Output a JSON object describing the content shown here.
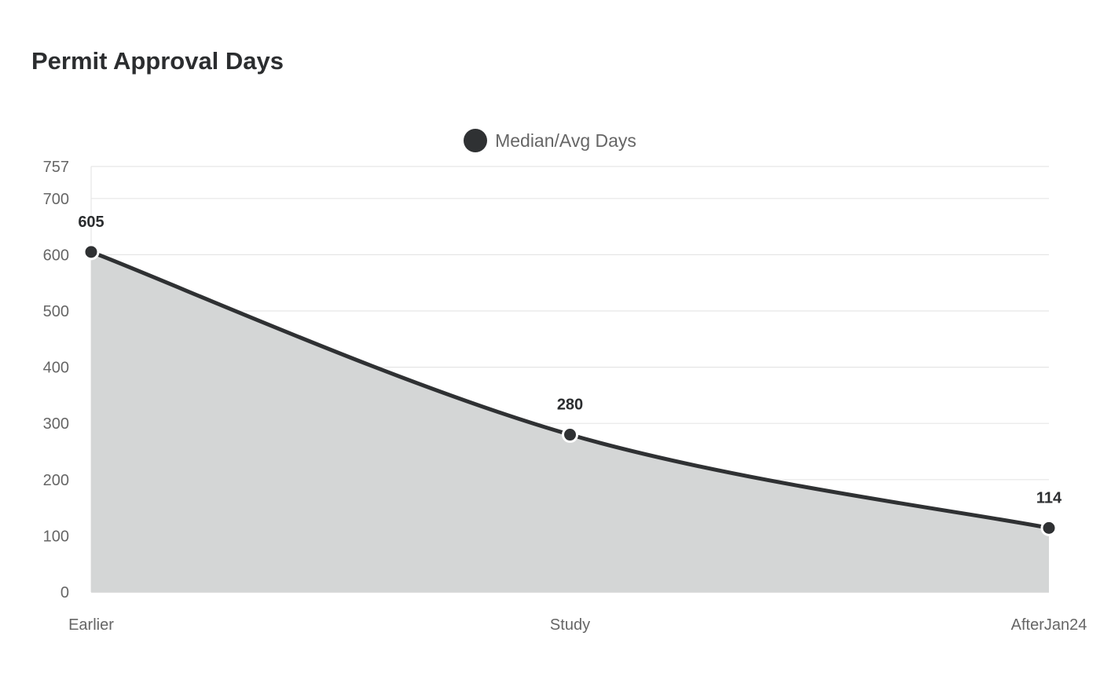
{
  "chart_data": {
    "type": "area",
    "title": "Permit Approval Days",
    "categories": [
      "Earlier",
      "Study",
      "AfterJan24"
    ],
    "series": [
      {
        "name": "Median/Avg Days",
        "values": [
          605,
          280,
          114
        ],
        "color": "#2f3133"
      }
    ],
    "y_ticks": [
      0,
      100,
      200,
      300,
      400,
      500,
      600,
      700,
      757
    ],
    "ylim": [
      0,
      757
    ],
    "xlabel": "",
    "ylabel": "",
    "grid": true,
    "legend_position": "top-center",
    "fill_color": "#d4d6d6",
    "line_color": "#2f3133",
    "grid_color": "#e6e6e6"
  }
}
